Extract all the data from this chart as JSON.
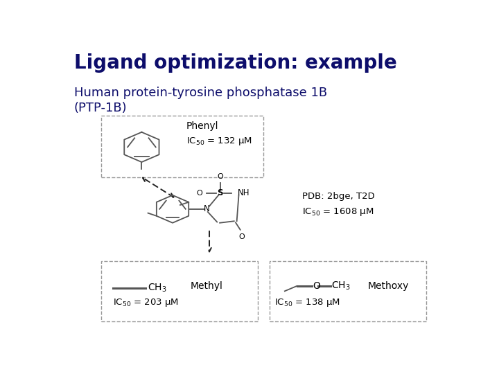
{
  "title": "Ligand optimization: example",
  "subtitle": "Human protein-tyrosine phosphatase 1B\n(PTP-1B)",
  "title_color": "#0d0d6b",
  "subtitle_color": "#0d0d6b",
  "title_fontsize": 20,
  "subtitle_fontsize": 13,
  "background_color": "#ffffff",
  "box_color": "#999999",
  "phenyl_label": "Phenyl",
  "phenyl_ic50": "IC$_{50}$ = 132 μM",
  "pdb_label": "PDB: 2bge, T2D",
  "center_ic50": "IC$_{50}$ = 1608 μM",
  "methyl_label": "Methyl",
  "methyl_ic50": "IC$_{50}$ = 203 μM",
  "methoxy_label": "Methoxy",
  "methoxy_ic50": "IC$_{50}$ = 138 μM",
  "text_color": "#000000",
  "arrow_color": "#222222",
  "struct_color": "#555555"
}
